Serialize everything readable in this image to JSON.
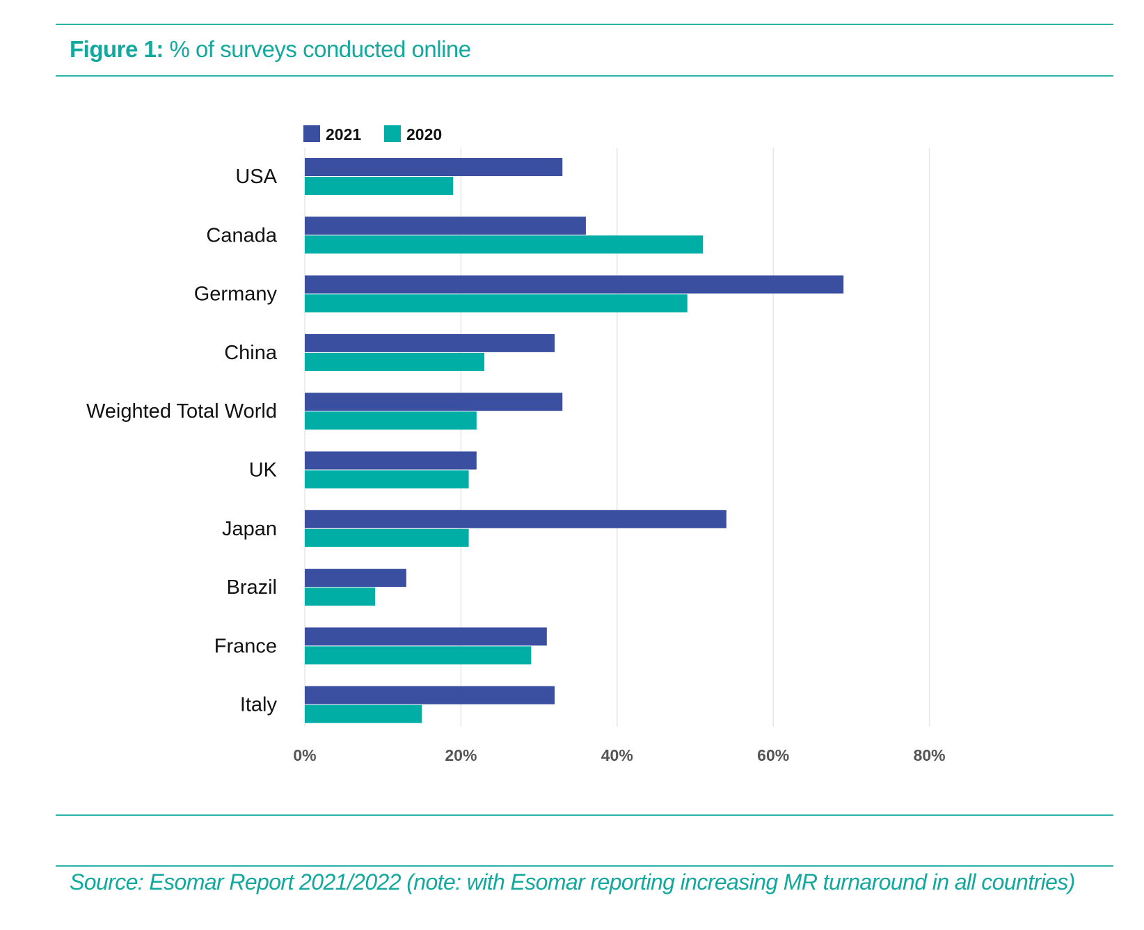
{
  "figure": {
    "label": "Figure 1:",
    "title": "% of surveys conducted online"
  },
  "source": "Source: Esomar Report 2021/2022 (note: with Esomar reporting increasing MR turnaround in all countries)",
  "colors": {
    "accent": "#13a89e",
    "series_2021": "#3a4fa0",
    "series_2020": "#00aea6",
    "grid": "#e6e6e6"
  },
  "chart_data": {
    "type": "bar",
    "orientation": "horizontal",
    "title": "% of surveys conducted online",
    "categories": [
      "USA",
      "Canada",
      "Germany",
      "China",
      "Weighted Total World",
      "UK",
      "Japan",
      "Brazil",
      "France",
      "Italy"
    ],
    "series": [
      {
        "name": "2021",
        "values": [
          33,
          36,
          69,
          32,
          33,
          22,
          54,
          13,
          31,
          32
        ]
      },
      {
        "name": "2020",
        "values": [
          19,
          51,
          49,
          23,
          22,
          21,
          21,
          9,
          29,
          15
        ]
      }
    ],
    "xticks": [
      "0%",
      "20%",
      "40%",
      "60%",
      "80%"
    ],
    "xlim": [
      0,
      80
    ],
    "grid": "vertical",
    "legend": "top-left"
  }
}
